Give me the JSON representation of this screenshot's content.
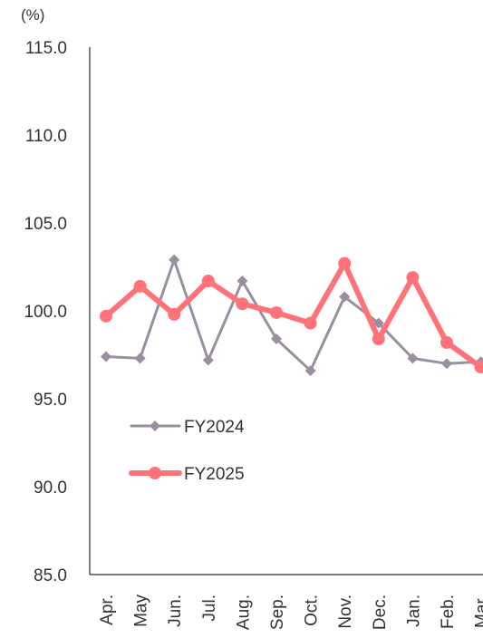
{
  "chart_data": {
    "type": "line",
    "ylabel": "(%)",
    "ylim": [
      85.0,
      115.0
    ],
    "yticks": [
      "115.0",
      "110.0",
      "105.0",
      "100.0",
      "95.0",
      "90.0",
      "85.0"
    ],
    "ytick_values": [
      115,
      110,
      105,
      100,
      95,
      90,
      85
    ],
    "categories": [
      "Apr.",
      "May",
      "Jun.",
      "Jul.",
      "Aug.",
      "Sep.",
      "Oct.",
      "Nov.",
      "Dec.",
      "Jan.",
      "Feb.",
      "Mar."
    ],
    "grid": false,
    "legend_position": "left-lower-inside",
    "series": [
      {
        "name": "FY2024",
        "color": "#9a8fa0",
        "marker": "diamond",
        "values": [
          97.4,
          97.3,
          102.9,
          97.2,
          101.7,
          98.4,
          96.6,
          100.8,
          99.3,
          97.3,
          97.0,
          97.1
        ]
      },
      {
        "name": "FY2025",
        "color": "#ff7378",
        "marker": "circle",
        "values": [
          99.7,
          101.4,
          99.8,
          101.7,
          100.4,
          99.9,
          99.3,
          102.7,
          98.4,
          101.9,
          98.2,
          96.8
        ]
      }
    ]
  }
}
